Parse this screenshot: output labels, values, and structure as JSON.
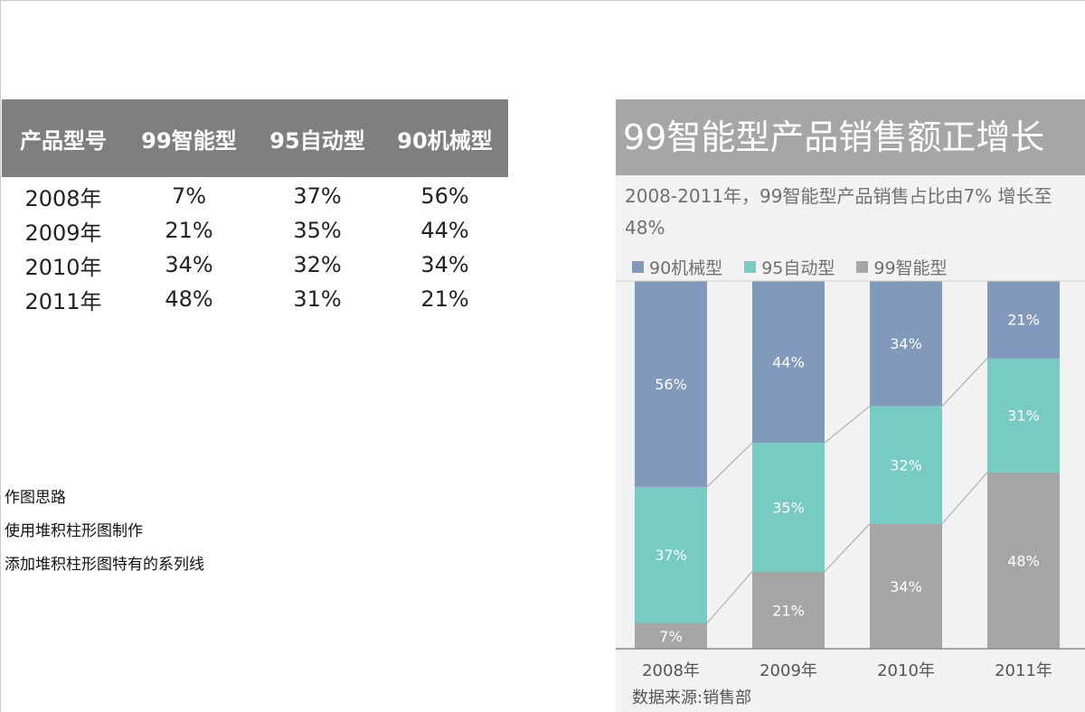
{
  "table": {
    "headers": [
      "产品型号",
      "99智能型",
      "95自动型",
      "90机械型"
    ],
    "rows": [
      [
        "2008年",
        "7%",
        "37%",
        "56%"
      ],
      [
        "2009年",
        "21%",
        "35%",
        "44%"
      ],
      [
        "2010年",
        "34%",
        "32%",
        "34%"
      ],
      [
        "2011年",
        "48%",
        "31%",
        "21%"
      ]
    ]
  },
  "notes": [
    "作图思路",
    "使用堆积柱形图制作",
    "添加堆积柱形图特有的系列线"
  ],
  "chart_data": {
    "type": "bar",
    "stacked": true,
    "title": "99智能型产品销售额正增长",
    "subtitle": "2008-2011年，99智能型产品销售占比由7% 增长至48%",
    "categories": [
      "2008年",
      "2009年",
      "2010年",
      "2011年"
    ],
    "series": [
      {
        "name": "99智能型",
        "values": [
          7,
          21,
          34,
          48
        ],
        "color": "#a6a6a6"
      },
      {
        "name": "95自动型",
        "values": [
          37,
          35,
          32,
          31
        ],
        "color": "#76cbc2"
      },
      {
        "name": "90机械型",
        "values": [
          56,
          44,
          34,
          21
        ],
        "color": "#8199bb"
      }
    ],
    "legend_order": [
      "90机械型",
      "95自动型",
      "99智能型"
    ],
    "value_format": "%",
    "ylim": [
      0,
      100
    ],
    "series_lines": true,
    "legend_position": "top-left",
    "source": "数据来源:销售部"
  }
}
